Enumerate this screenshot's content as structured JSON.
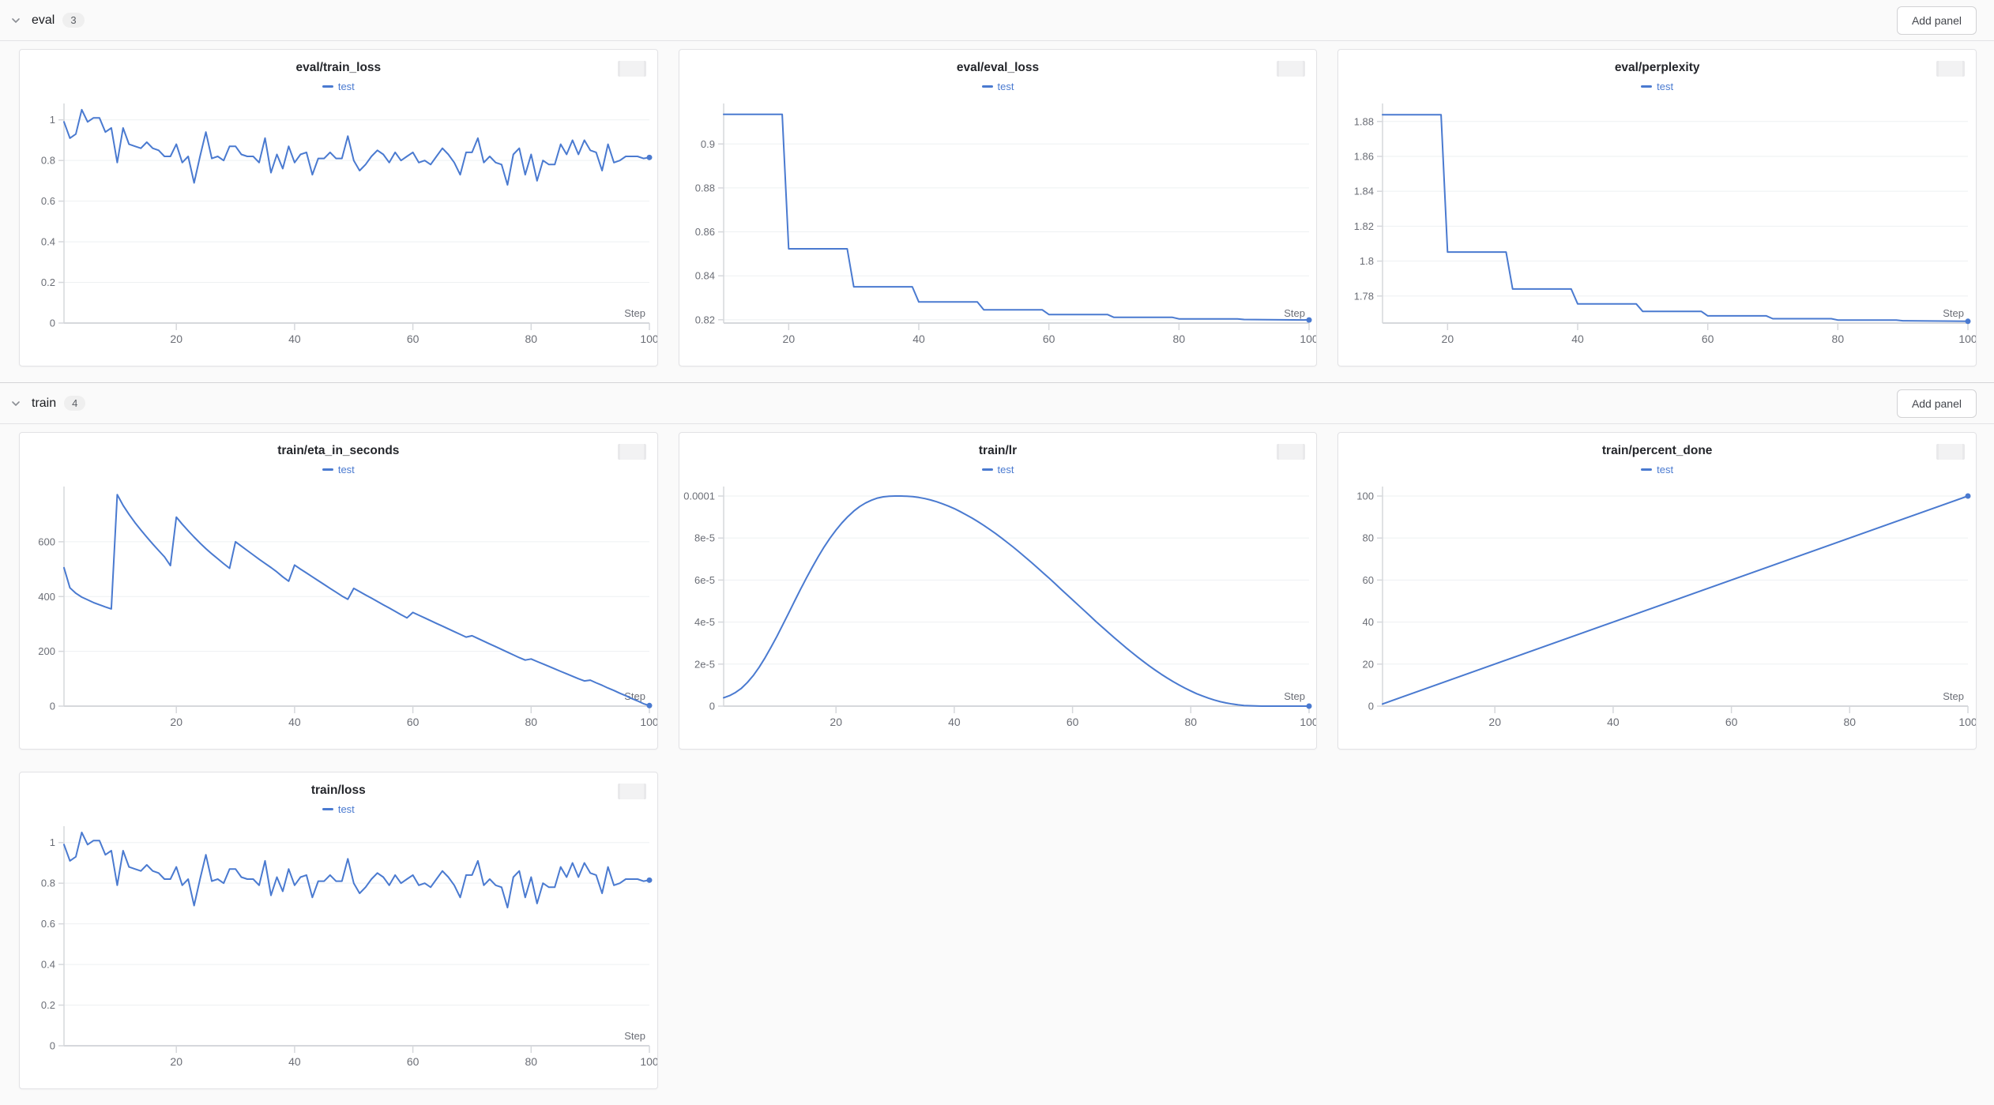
{
  "colors": {
    "line": "#4a7ad0",
    "grid": "#eef0f2",
    "axis": "#d6d8dc",
    "tick_text": "#6b6e76",
    "title_text": "#24262b",
    "page_bg": "#fafafa",
    "panel_bg": "#ffffff"
  },
  "sections": [
    {
      "title": "eval",
      "count": "3",
      "add_panel": "Add panel",
      "panel_refs": [
        0,
        1,
        2
      ]
    },
    {
      "title": "train",
      "count": "4",
      "add_panel": "Add panel",
      "panel_refs": [
        3,
        4,
        5,
        6
      ]
    }
  ],
  "chart_data": [
    {
      "type": "line",
      "title": "eval/train_loss",
      "legend": [
        "test"
      ],
      "xlabel": "Step",
      "x_ticks": [
        20,
        40,
        60,
        80,
        100
      ],
      "x_range": [
        1,
        100
      ],
      "y_range": [
        0,
        1.065
      ],
      "y_ticks": [
        {
          "v": 0,
          "label": "0"
        },
        {
          "v": 0.2,
          "label": "0.2"
        },
        {
          "v": 0.4,
          "label": "0.4"
        },
        {
          "v": 0.6,
          "label": "0.6"
        },
        {
          "v": 0.8,
          "label": "0.8"
        },
        {
          "v": 1,
          "label": "1"
        }
      ],
      "x_start": 1,
      "y": [
        0.99,
        0.91,
        0.93,
        1.05,
        0.99,
        1.01,
        1.01,
        0.94,
        0.96,
        0.79,
        0.96,
        0.88,
        0.87,
        0.86,
        0.89,
        0.86,
        0.85,
        0.82,
        0.82,
        0.88,
        0.79,
        0.82,
        0.69,
        0.82,
        0.94,
        0.81,
        0.82,
        0.8,
        0.87,
        0.87,
        0.83,
        0.82,
        0.82,
        0.79,
        0.91,
        0.74,
        0.83,
        0.76,
        0.87,
        0.79,
        0.83,
        0.84,
        0.73,
        0.81,
        0.81,
        0.84,
        0.81,
        0.81,
        0.92,
        0.8,
        0.75,
        0.78,
        0.82,
        0.85,
        0.83,
        0.79,
        0.84,
        0.8,
        0.82,
        0.84,
        0.79,
        0.8,
        0.78,
        0.82,
        0.86,
        0.83,
        0.79,
        0.73,
        0.84,
        0.84,
        0.91,
        0.79,
        0.82,
        0.79,
        0.78,
        0.68,
        0.83,
        0.86,
        0.73,
        0.83,
        0.7,
        0.8,
        0.78,
        0.78,
        0.88,
        0.83,
        0.9,
        0.83,
        0.9,
        0.85,
        0.84,
        0.75,
        0.88,
        0.79,
        0.8,
        0.82,
        0.82,
        0.82,
        0.81,
        0.815
      ]
    },
    {
      "type": "line",
      "title": "eval/eval_loss",
      "legend": [
        "test"
      ],
      "xlabel": "Step",
      "x_ticks": [
        20,
        40,
        60,
        80,
        100
      ],
      "x_range": [
        10,
        100
      ],
      "y_range": [
        0.8185,
        0.917
      ],
      "y_ticks": [
        {
          "v": 0.82,
          "label": "0.82"
        },
        {
          "v": 0.84,
          "label": "0.84"
        },
        {
          "v": 0.86,
          "label": "0.86"
        },
        {
          "v": 0.88,
          "label": "0.88"
        },
        {
          "v": 0.9,
          "label": "0.9"
        }
      ],
      "x": [
        10,
        19,
        20,
        29,
        30,
        39,
        40,
        49,
        50,
        59,
        60,
        69,
        70,
        79,
        80,
        89,
        90,
        100
      ],
      "y": [
        0.9135,
        0.9135,
        0.8523,
        0.8523,
        0.835,
        0.835,
        0.8281,
        0.8281,
        0.8245,
        0.8245,
        0.8224,
        0.8224,
        0.8211,
        0.8211,
        0.8204,
        0.8204,
        0.8201,
        0.8199
      ]
    },
    {
      "type": "line",
      "title": "eval/perplexity",
      "legend": [
        "test"
      ],
      "xlabel": "Step",
      "x_ticks": [
        20,
        40,
        60,
        80,
        100
      ],
      "x_range": [
        10,
        100
      ],
      "y_range": [
        1.7645,
        1.8885
      ],
      "y_ticks": [
        {
          "v": 1.78,
          "label": "1.78"
        },
        {
          "v": 1.8,
          "label": "1.8"
        },
        {
          "v": 1.82,
          "label": "1.82"
        },
        {
          "v": 1.84,
          "label": "1.84"
        },
        {
          "v": 1.86,
          "label": "1.86"
        },
        {
          "v": 1.88,
          "label": "1.88"
        }
      ],
      "x": [
        10,
        19,
        20,
        29,
        30,
        39,
        40,
        49,
        50,
        59,
        60,
        69,
        70,
        79,
        80,
        89,
        90,
        100
      ],
      "y": [
        1.8839,
        1.8839,
        1.8052,
        1.8052,
        1.784,
        1.784,
        1.7755,
        1.7755,
        1.7712,
        1.7712,
        1.7686,
        1.7686,
        1.767,
        1.767,
        1.7662,
        1.7662,
        1.7658,
        1.7655
      ]
    },
    {
      "type": "line",
      "title": "train/eta_in_seconds",
      "legend": [
        "test"
      ],
      "xlabel": "Step",
      "x_ticks": [
        20,
        40,
        60,
        80,
        100
      ],
      "x_range": [
        1,
        100
      ],
      "y_range": [
        0,
        790
      ],
      "y_ticks": [
        {
          "v": 0,
          "label": "0"
        },
        {
          "v": 200,
          "label": "200"
        },
        {
          "v": 400,
          "label": "400"
        },
        {
          "v": 600,
          "label": "600"
        }
      ],
      "x_start": 1,
      "y": [
        505,
        432,
        412,
        398,
        388,
        378,
        370,
        362,
        355,
        772,
        733,
        700,
        670,
        643,
        617,
        592,
        568,
        545,
        513,
        690,
        664,
        640,
        617,
        595,
        575,
        556,
        538,
        520,
        503,
        600,
        584,
        568,
        552,
        536,
        521,
        506,
        490,
        472,
        456,
        515,
        500,
        486,
        472,
        458,
        444,
        430,
        416,
        402,
        390,
        430,
        418,
        406,
        394,
        382,
        370,
        358,
        346,
        334,
        322,
        342,
        332,
        322,
        312,
        302,
        292,
        282,
        272,
        262,
        252,
        257,
        247,
        237,
        227,
        217,
        207,
        197,
        187,
        177,
        168,
        172,
        163,
        154,
        145,
        136,
        127,
        118,
        109,
        100,
        92,
        95,
        85,
        76,
        66,
        57,
        47,
        38,
        28,
        19,
        9,
        2
      ]
    },
    {
      "type": "line",
      "title": "train/lr",
      "legend": [
        "test"
      ],
      "xlabel": "Step",
      "x_ticks": [
        20,
        40,
        60,
        80,
        100
      ],
      "x_range": [
        1,
        100
      ],
      "y_range": [
        0,
        10.3
      ],
      "y_unit": "1e-5",
      "y_ticks": [
        {
          "v": 0,
          "label": "0"
        },
        {
          "v": 2,
          "label": "2e-5"
        },
        {
          "v": 4,
          "label": "4e-5"
        },
        {
          "v": 6,
          "label": "6e-5"
        },
        {
          "v": 8,
          "label": "8e-5"
        },
        {
          "v": 10,
          "label": "0.0001"
        }
      ],
      "x_start": 1,
      "y": [
        0.4,
        0.5,
        0.65,
        0.85,
        1.12,
        1.45,
        1.85,
        2.3,
        2.8,
        3.32,
        3.87,
        4.43,
        5.0,
        5.56,
        6.1,
        6.62,
        7.12,
        7.58,
        8.0,
        8.38,
        8.72,
        9.02,
        9.28,
        9.5,
        9.67,
        9.8,
        9.9,
        9.96,
        9.99,
        10.0,
        10.0,
        9.99,
        9.97,
        9.93,
        9.88,
        9.81,
        9.73,
        9.63,
        9.52,
        9.4,
        9.26,
        9.11,
        8.95,
        8.78,
        8.6,
        8.41,
        8.21,
        8.0,
        7.78,
        7.56,
        7.33,
        7.09,
        6.85,
        6.6,
        6.35,
        6.1,
        5.84,
        5.58,
        5.32,
        5.06,
        4.8,
        4.54,
        4.28,
        4.02,
        3.77,
        3.52,
        3.27,
        3.03,
        2.79,
        2.56,
        2.34,
        2.12,
        1.91,
        1.71,
        1.52,
        1.34,
        1.17,
        1.01,
        0.86,
        0.72,
        0.59,
        0.48,
        0.38,
        0.29,
        0.21,
        0.15,
        0.1,
        0.06,
        0.03,
        0.02,
        0.01,
        0.0,
        0.0,
        0.0,
        0.0,
        0.0,
        0.0,
        0.0,
        0.0,
        0.0
      ]
    },
    {
      "type": "line",
      "title": "train/percent_done",
      "legend": [
        "test"
      ],
      "xlabel": "Step",
      "x_ticks": [
        20,
        40,
        60,
        80,
        100
      ],
      "x_range": [
        1,
        100
      ],
      "y_range": [
        0,
        103
      ],
      "y_ticks": [
        {
          "v": 0,
          "label": "0"
        },
        {
          "v": 20,
          "label": "20"
        },
        {
          "v": 40,
          "label": "40"
        },
        {
          "v": 60,
          "label": "60"
        },
        {
          "v": 80,
          "label": "80"
        },
        {
          "v": 100,
          "label": "100"
        }
      ],
      "x": [
        1,
        100
      ],
      "y": [
        1,
        100
      ]
    },
    {
      "type": "line",
      "title": "train/loss",
      "legend": [
        "test"
      ],
      "xlabel": "Step",
      "x_ticks": [
        20,
        40,
        60,
        80,
        100
      ],
      "x_range": [
        1,
        100
      ],
      "y_range": [
        0,
        1.065
      ],
      "y_ticks": [
        {
          "v": 0,
          "label": "0"
        },
        {
          "v": 0.2,
          "label": "0.2"
        },
        {
          "v": 0.4,
          "label": "0.4"
        },
        {
          "v": 0.6,
          "label": "0.6"
        },
        {
          "v": 0.8,
          "label": "0.8"
        },
        {
          "v": 1,
          "label": "1"
        }
      ],
      "x_start": 1,
      "y": [
        0.99,
        0.91,
        0.93,
        1.05,
        0.99,
        1.01,
        1.01,
        0.94,
        0.96,
        0.79,
        0.96,
        0.88,
        0.87,
        0.86,
        0.89,
        0.86,
        0.85,
        0.82,
        0.82,
        0.88,
        0.79,
        0.82,
        0.69,
        0.82,
        0.94,
        0.81,
        0.82,
        0.8,
        0.87,
        0.87,
        0.83,
        0.82,
        0.82,
        0.79,
        0.91,
        0.74,
        0.83,
        0.76,
        0.87,
        0.79,
        0.83,
        0.84,
        0.73,
        0.81,
        0.81,
        0.84,
        0.81,
        0.81,
        0.92,
        0.8,
        0.75,
        0.78,
        0.82,
        0.85,
        0.83,
        0.79,
        0.84,
        0.8,
        0.82,
        0.84,
        0.79,
        0.8,
        0.78,
        0.82,
        0.86,
        0.83,
        0.79,
        0.73,
        0.84,
        0.84,
        0.91,
        0.79,
        0.82,
        0.79,
        0.78,
        0.68,
        0.83,
        0.86,
        0.73,
        0.83,
        0.7,
        0.8,
        0.78,
        0.78,
        0.88,
        0.83,
        0.9,
        0.83,
        0.9,
        0.85,
        0.84,
        0.75,
        0.88,
        0.79,
        0.8,
        0.82,
        0.82,
        0.82,
        0.81,
        0.815
      ]
    }
  ]
}
